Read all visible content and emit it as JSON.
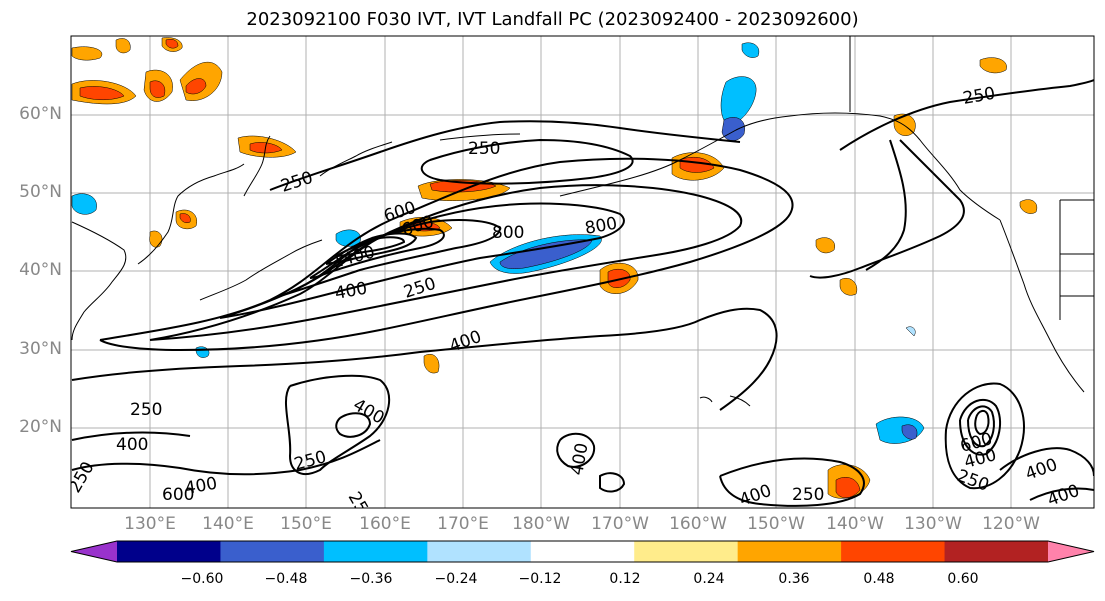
{
  "title": "2023092100 F030 IVT, IVT Landfall PC (2023092400 - 2023092600)",
  "lat_labels": [
    "60°N",
    "50°N",
    "40°N",
    "30°N",
    "20°N"
  ],
  "lon_labels": [
    "130°E",
    "140°E",
    "150°E",
    "160°E",
    "170°E",
    "180°W",
    "170°W",
    "160°W",
    "150°W",
    "140°W",
    "130°W",
    "120°W"
  ],
  "colorbar": {
    "colors": [
      "#9932cc",
      "#00008b",
      "#3a5fcd",
      "#00bfff",
      "#b0e2ff",
      "#ffffff",
      "#ffec8b",
      "#ffa500",
      "#ff4500",
      "#b22222",
      "#ff82ab"
    ],
    "ticks": [
      "−0.60",
      "−0.48",
      "−0.36",
      "−0.24",
      "−0.12",
      "0.12",
      "0.24",
      "0.36",
      "0.48",
      "0.60"
    ]
  },
  "contour_labels": [
    "250",
    "250",
    "250",
    "250",
    "400",
    "400",
    "400",
    "400",
    "400",
    "400",
    "400",
    "400",
    "400",
    "600",
    "600",
    "600",
    "800",
    "800",
    "1400",
    "250",
    "250",
    "250",
    "250",
    "25",
    "600",
    "400",
    "250"
  ]
}
